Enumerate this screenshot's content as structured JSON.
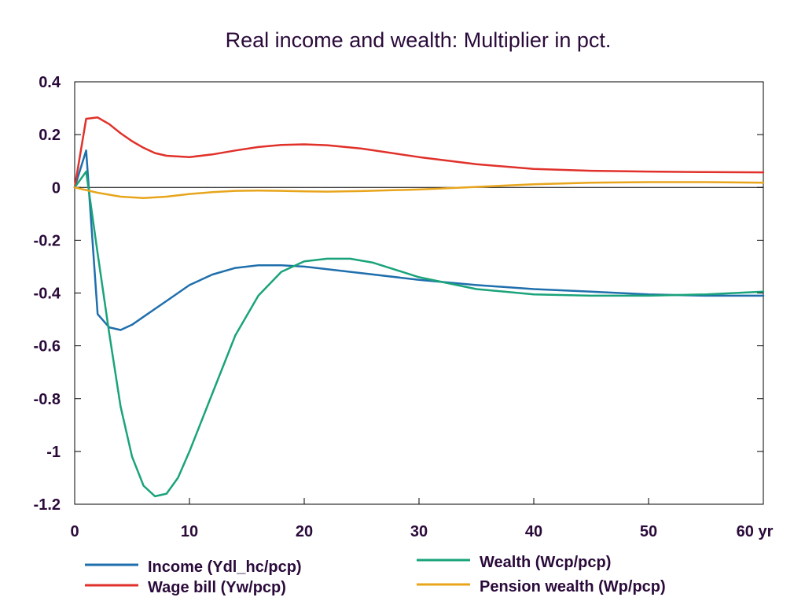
{
  "chart_data": {
    "type": "line",
    "title": "Real income and wealth: Multiplier in pct.",
    "xlabel": "",
    "ylabel": "",
    "x_unit_label": "yr",
    "xlim": [
      0,
      60
    ],
    "ylim": [
      -1.2,
      0.4
    ],
    "x_ticks": [
      0,
      10,
      20,
      30,
      40,
      50,
      60
    ],
    "x_tick_labels": [
      "0",
      "10",
      "20",
      "30",
      "40",
      "50",
      "60 yr"
    ],
    "y_ticks": [
      0.4,
      0.2,
      0,
      -0.2,
      -0.4,
      -0.6,
      -0.8,
      -1,
      -1.2
    ],
    "y_tick_labels": [
      "0.4",
      "0.2",
      "0",
      "-0.2",
      "-0.4",
      "-0.6",
      "-0.8",
      "-1",
      "-1.2"
    ],
    "zero_line": true,
    "grid": false,
    "legend_position": "bottom",
    "series": [
      {
        "name": "Income (Ydl_hc/pcp)",
        "color": "#1f6fad",
        "x": [
          0,
          1,
          2,
          3,
          4,
          5,
          6,
          7,
          8,
          10,
          12,
          14,
          16,
          18,
          20,
          25,
          30,
          35,
          40,
          45,
          50,
          55,
          60
        ],
        "values": [
          0,
          0.14,
          -0.48,
          -0.53,
          -0.54,
          -0.52,
          -0.49,
          -0.46,
          -0.43,
          -0.37,
          -0.33,
          -0.305,
          -0.295,
          -0.295,
          -0.3,
          -0.325,
          -0.35,
          -0.37,
          -0.385,
          -0.395,
          -0.405,
          -0.41,
          -0.41
        ]
      },
      {
        "name": "Wage bill (Yw/pcp)",
        "color": "#e0312a",
        "x": [
          0,
          1,
          2,
          3,
          4,
          5,
          6,
          7,
          8,
          10,
          12,
          14,
          16,
          18,
          20,
          22,
          25,
          30,
          35,
          40,
          45,
          50,
          55,
          60
        ],
        "values": [
          0,
          0.26,
          0.265,
          0.24,
          0.205,
          0.175,
          0.15,
          0.13,
          0.12,
          0.115,
          0.125,
          0.14,
          0.153,
          0.161,
          0.163,
          0.16,
          0.147,
          0.115,
          0.088,
          0.07,
          0.063,
          0.06,
          0.058,
          0.057
        ]
      },
      {
        "name": "Wealth (Wcp/pcp)",
        "color": "#1aa37a",
        "x": [
          0,
          1,
          2,
          3,
          4,
          5,
          6,
          7,
          8,
          9,
          10,
          12,
          14,
          16,
          18,
          20,
          22,
          24,
          26,
          30,
          35,
          40,
          45,
          50,
          55,
          60
        ],
        "values": [
          0,
          0.06,
          -0.25,
          -0.55,
          -0.83,
          -1.02,
          -1.13,
          -1.17,
          -1.16,
          -1.1,
          -1.0,
          -0.78,
          -0.56,
          -0.41,
          -0.32,
          -0.28,
          -0.27,
          -0.27,
          -0.285,
          -0.34,
          -0.385,
          -0.405,
          -0.41,
          -0.41,
          -0.405,
          -0.395
        ]
      },
      {
        "name": "Pension wealth (Wp/pcp)",
        "color": "#e8a51c",
        "x": [
          0,
          2,
          4,
          6,
          8,
          10,
          12,
          14,
          16,
          18,
          20,
          22,
          25,
          30,
          35,
          40,
          45,
          50,
          55,
          60
        ],
        "values": [
          0,
          -0.02,
          -0.035,
          -0.04,
          -0.035,
          -0.025,
          -0.018,
          -0.013,
          -0.012,
          -0.013,
          -0.015,
          -0.016,
          -0.014,
          -0.008,
          0.002,
          0.012,
          0.018,
          0.02,
          0.02,
          0.018
        ]
      }
    ]
  }
}
